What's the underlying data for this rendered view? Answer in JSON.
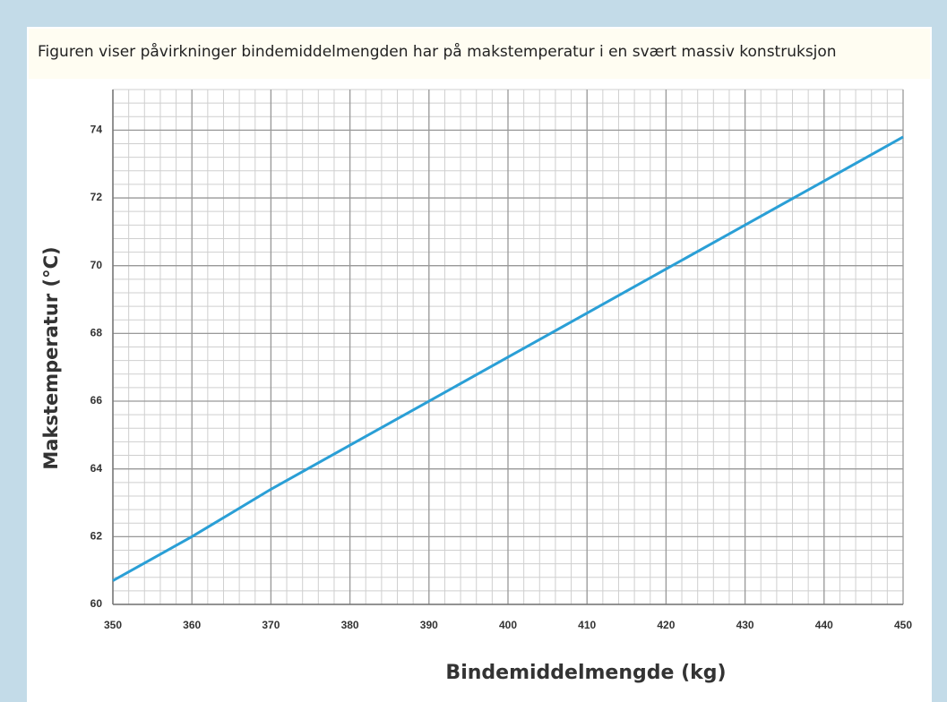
{
  "header": {
    "text": "Figuren viser påvirkninger bindemiddelmengden har på makstemperatur i en svært massiv konstruksjon"
  },
  "chart_data": {
    "type": "line",
    "xlabel": "Bindemiddelmengde (kg)",
    "ylabel": "Makstemperatur (°C)",
    "x": [
      350,
      360,
      370,
      380,
      390,
      400,
      410,
      420,
      430,
      440,
      450
    ],
    "series": [
      {
        "name": "Makstemperatur",
        "color": "#2a9fd6",
        "values": [
          60.7,
          62.0,
          63.4,
          64.7,
          66.0,
          67.3,
          68.6,
          69.9,
          71.2,
          72.5,
          73.8
        ]
      }
    ],
    "xlim": [
      350,
      450
    ],
    "xticks": [
      350,
      360,
      370,
      380,
      390,
      400,
      410,
      420,
      430,
      440,
      450
    ],
    "ylim": [
      60,
      75.2
    ],
    "yticks": [
      60,
      62,
      64,
      66,
      68,
      70,
      72,
      74
    ],
    "grid": true,
    "minor_grid": true
  }
}
